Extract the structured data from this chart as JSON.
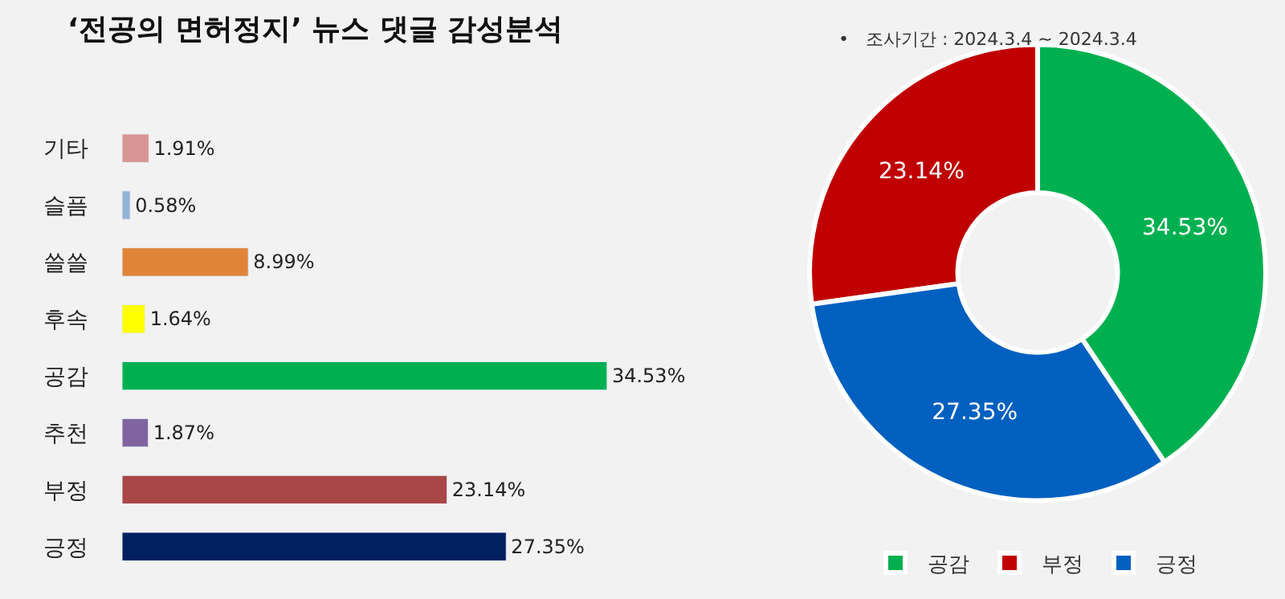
{
  "chart_data": [
    {
      "type": "bar",
      "orientation": "horizontal",
      "title": "‘전공의 면허정지’ 뉴스 댓글 감성분석",
      "categories": [
        "기타",
        "슬픔",
        "쓸쓸",
        "후속",
        "공감",
        "추천",
        "부정",
        "긍정"
      ],
      "values": [
        1.91,
        0.58,
        8.99,
        1.64,
        34.53,
        1.87,
        23.14,
        27.35
      ],
      "value_labels": [
        "1.91%",
        "0.58%",
        "8.99%",
        "1.64%",
        "34.53%",
        "1.87%",
        "23.14%",
        "27.35%"
      ],
      "colors": [
        "#d99594",
        "#95b3d7",
        "#e0843a",
        "#ffff00",
        "#00b050",
        "#8064a2",
        "#a94646",
        "#002060"
      ],
      "tick_labels": "y"
    },
    {
      "type": "donut",
      "annotations": [
        "•   조사기간 : 2024.3.4 ~ 2024.3.4"
      ],
      "categories": [
        "공감",
        "부정",
        "긍정"
      ],
      "values": [
        34.53,
        23.14,
        27.35
      ],
      "value_labels": [
        "34.53%",
        "23.14%",
        "27.35%"
      ],
      "colors": [
        "#00b050",
        "#c00000",
        "#0060c0"
      ],
      "legend": "bottom"
    }
  ]
}
